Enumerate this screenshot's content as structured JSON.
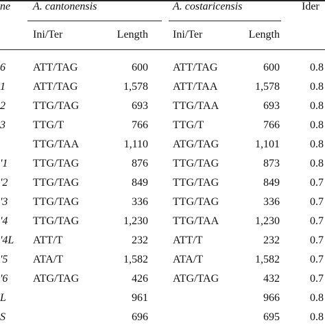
{
  "header": {
    "gene_col_fragment": "ne",
    "group1": "A. cantonensis",
    "group2": "A. costaricensis",
    "identity_fragment": "Ider",
    "sub_ini_ter_1": "Ini/Ter",
    "sub_length_1": "Length",
    "sub_ini_ter_2": "Ini/Ter",
    "sub_length_2": "Length"
  },
  "rows": [
    {
      "gene": "6",
      "ini1": "ATT/TAG",
      "len1": "600",
      "ini2": "ATT/TAG",
      "len2": "600",
      "id": "0.8"
    },
    {
      "gene": "1",
      "ini1": "ATT/TAG",
      "len1": "1,578",
      "ini2": "ATT/TAA",
      "len2": "1,578",
      "id": "0.8"
    },
    {
      "gene": "2",
      "ini1": "TTG/TAG",
      "len1": "693",
      "ini2": "TTG/TAA",
      "len2": "693",
      "id": "0.8"
    },
    {
      "gene": "3",
      "ini1": "TTG/T",
      "len1": "766",
      "ini2": "TTG/T",
      "len2": "766",
      "id": "0.8"
    },
    {
      "gene": "",
      "ini1": "TTG/TAA",
      "len1": "1,110",
      "ini2": "ATG/TAG",
      "len2": "1,101",
      "id": "0.8"
    },
    {
      "gene": "'1",
      "ini1": "TTG/TAG",
      "len1": "876",
      "ini2": "TTG/TAG",
      "len2": "873",
      "id": "0.8"
    },
    {
      "gene": "'2",
      "ini1": "TTG/TAG",
      "len1": "849",
      "ini2": "TTG/TAG",
      "len2": "849",
      "id": "0.7"
    },
    {
      "gene": "'3",
      "ini1": "TTG/TAG",
      "len1": "336",
      "ini2": "TTG/TAG",
      "len2": "336",
      "id": "0.7"
    },
    {
      "gene": "'4",
      "ini1": "TTG/TAG",
      "len1": "1,230",
      "ini2": "TTG/TAA",
      "len2": "1,230",
      "id": "0.7"
    },
    {
      "gene": "'4L",
      "ini1": "ATT/T",
      "len1": "232",
      "ini2": "ATT/T",
      "len2": "232",
      "id": "0.7"
    },
    {
      "gene": "'5",
      "ini1": "ATA/T",
      "len1": "1,582",
      "ini2": "ATA/T",
      "len2": "1,582",
      "id": "0.7"
    },
    {
      "gene": "'6",
      "ini1": "ATG/TAG",
      "len1": "426",
      "ini2": "ATG/TAG",
      "len2": "432",
      "id": "0.7"
    },
    {
      "gene": "L",
      "ini1": "",
      "len1": "961",
      "ini2": "",
      "len2": "966",
      "id": "0.8"
    },
    {
      "gene": "S",
      "ini1": "",
      "len1": "696",
      "ini2": "",
      "len2": "695",
      "id": "0.8"
    }
  ]
}
